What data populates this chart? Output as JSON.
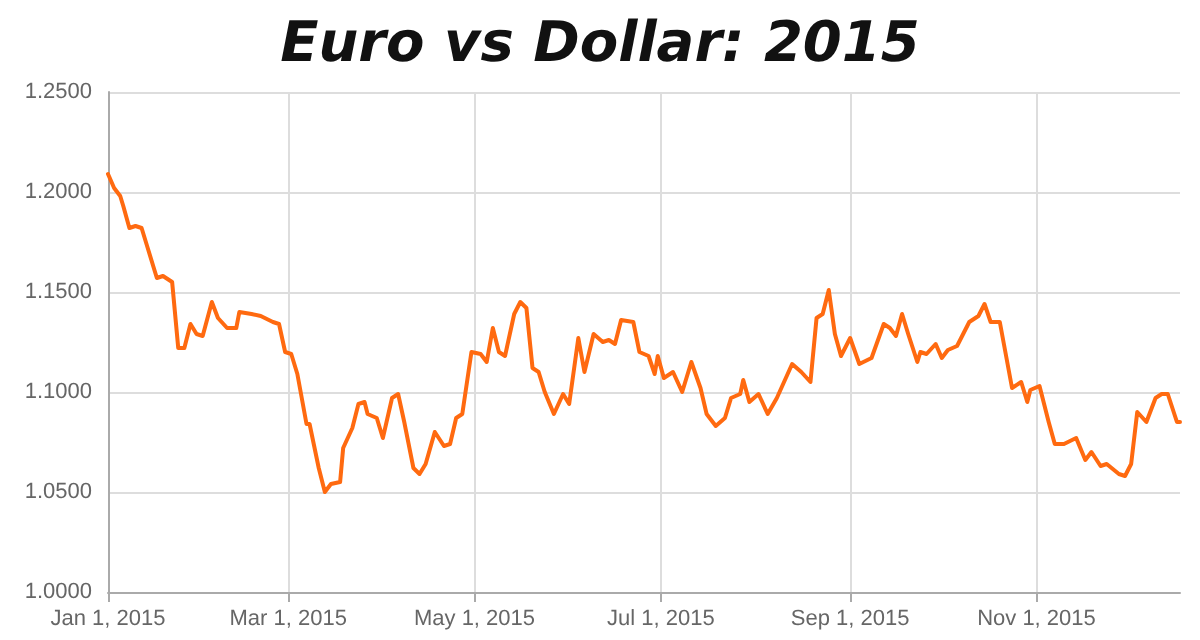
{
  "chart_data": {
    "type": "line",
    "title": "Euro vs Dollar: 2015",
    "x": [
      "2015-01-01",
      "2015-01-03",
      "2015-01-05",
      "2015-01-06",
      "2015-01-08",
      "2015-01-10",
      "2015-01-12",
      "2015-01-14",
      "2015-01-17",
      "2015-01-19",
      "2015-01-22",
      "2015-01-24",
      "2015-01-26",
      "2015-01-28",
      "2015-01-30",
      "2015-02-01",
      "2015-02-04",
      "2015-02-06",
      "2015-02-09",
      "2015-02-12",
      "2015-02-13",
      "2015-02-17",
      "2015-02-20",
      "2015-02-24",
      "2015-02-26",
      "2015-02-28",
      "2015-03-02",
      "2015-03-04",
      "2015-03-07",
      "2015-03-08",
      "2015-03-11",
      "2015-03-13",
      "2015-03-15",
      "2015-03-18",
      "2015-03-19",
      "2015-03-22",
      "2015-03-24",
      "2015-03-26",
      "2015-03-27",
      "2015-03-30",
      "2015-04-01",
      "2015-04-04",
      "2015-04-06",
      "2015-04-08",
      "2015-04-11",
      "2015-04-13",
      "2015-04-15",
      "2015-04-18",
      "2015-04-21",
      "2015-04-23",
      "2015-04-25",
      "2015-04-27",
      "2015-04-30",
      "2015-05-03",
      "2015-05-05",
      "2015-05-07",
      "2015-05-09",
      "2015-05-11",
      "2015-05-14",
      "2015-05-16",
      "2015-05-18",
      "2015-05-20",
      "2015-05-22",
      "2015-05-24",
      "2015-05-27",
      "2015-05-30",
      "2015-06-01",
      "2015-06-04",
      "2015-06-06",
      "2015-06-09",
      "2015-06-12",
      "2015-06-14",
      "2015-06-16",
      "2015-06-18",
      "2015-06-22",
      "2015-06-24",
      "2015-06-27",
      "2015-06-29",
      "2015-06-30",
      "2015-07-02",
      "2015-07-05",
      "2015-07-08",
      "2015-07-11",
      "2015-07-14",
      "2015-07-16",
      "2015-07-19",
      "2015-07-22",
      "2015-07-24",
      "2015-07-27",
      "2015-07-28",
      "2015-07-30",
      "2015-08-02",
      "2015-08-05",
      "2015-08-08",
      "2015-08-13",
      "2015-08-16",
      "2015-08-19",
      "2015-08-21",
      "2015-08-23",
      "2015-08-25",
      "2015-08-27",
      "2015-08-29",
      "2015-09-01",
      "2015-09-04",
      "2015-09-08",
      "2015-09-12",
      "2015-09-14",
      "2015-09-16",
      "2015-09-18",
      "2015-09-20",
      "2015-09-23",
      "2015-09-24",
      "2015-09-26",
      "2015-09-29",
      "2015-10-01",
      "2015-10-03",
      "2015-10-06",
      "2015-10-10",
      "2015-10-13",
      "2015-10-15",
      "2015-10-17",
      "2015-10-20",
      "2015-10-24",
      "2015-10-27",
      "2015-10-29",
      "2015-10-30",
      "2015-11-02",
      "2015-11-05",
      "2015-11-07",
      "2015-11-10",
      "2015-11-14",
      "2015-11-17",
      "2015-11-19",
      "2015-11-22",
      "2015-11-24",
      "2015-11-28",
      "2015-11-30",
      "2015-12-02",
      "2015-12-04",
      "2015-12-07",
      "2015-12-10",
      "2015-12-12",
      "2015-12-14",
      "2015-12-17",
      "2015-12-18"
    ],
    "series": [
      {
        "color": "#ff6a10",
        "values": [
          1.209,
          1.202,
          1.198,
          1.193,
          1.182,
          1.183,
          1.182,
          1.172,
          1.157,
          1.158,
          1.155,
          1.122,
          1.122,
          1.134,
          1.129,
          1.128,
          1.145,
          1.137,
          1.132,
          1.132,
          1.14,
          1.139,
          1.138,
          1.135,
          1.134,
          1.12,
          1.119,
          1.109,
          1.084,
          1.084,
          1.062,
          1.05,
          1.054,
          1.055,
          1.072,
          1.082,
          1.094,
          1.095,
          1.089,
          1.087,
          1.077,
          1.097,
          1.099,
          1.085,
          1.062,
          1.059,
          1.064,
          1.08,
          1.073,
          1.074,
          1.087,
          1.089,
          1.12,
          1.119,
          1.115,
          1.132,
          1.12,
          1.118,
          1.139,
          1.145,
          1.142,
          1.112,
          1.11,
          1.1,
          1.089,
          1.099,
          1.094,
          1.127,
          1.11,
          1.129,
          1.125,
          1.126,
          1.124,
          1.136,
          1.135,
          1.12,
          1.118,
          1.109,
          1.118,
          1.107,
          1.11,
          1.1,
          1.115,
          1.102,
          1.089,
          1.083,
          1.087,
          1.097,
          1.099,
          1.106,
          1.095,
          1.099,
          1.089,
          1.097,
          1.114,
          1.11,
          1.105,
          1.137,
          1.139,
          1.151,
          1.129,
          1.118,
          1.127,
          1.114,
          1.117,
          1.134,
          1.132,
          1.128,
          1.139,
          1.129,
          1.115,
          1.12,
          1.119,
          1.124,
          1.117,
          1.121,
          1.123,
          1.135,
          1.138,
          1.144,
          1.135,
          1.135,
          1.102,
          1.105,
          1.095,
          1.101,
          1.103,
          1.085,
          1.074,
          1.074,
          1.077,
          1.066,
          1.07,
          1.063,
          1.064,
          1.059,
          1.058,
          1.064,
          1.09,
          1.085,
          1.097,
          1.099,
          1.099,
          1.085,
          1.085
        ]
      }
    ],
    "xlim": [
      "2015-01-01",
      "2015-12-18"
    ],
    "xticks": [
      {
        "value": "2015-01-01",
        "label": "Jan 1, 2015"
      },
      {
        "value": "2015-03-01",
        "label": "Mar 1, 2015"
      },
      {
        "value": "2015-05-01",
        "label": "May 1, 2015"
      },
      {
        "value": "2015-07-01",
        "label": "Jul 1, 2015"
      },
      {
        "value": "2015-09-01",
        "label": "Sep 1, 2015"
      },
      {
        "value": "2015-11-01",
        "label": "Nov 1, 2015"
      }
    ],
    "ylim": [
      1.0,
      1.25
    ],
    "yticks": [
      {
        "value": 1.0,
        "label": "1.0000"
      },
      {
        "value": 1.05,
        "label": "1.0500"
      },
      {
        "value": 1.1,
        "label": "1.1000"
      },
      {
        "value": 1.15,
        "label": "1.1500"
      },
      {
        "value": 1.2,
        "label": "1.2000"
      },
      {
        "value": 1.25,
        "label": "1.2500"
      }
    ],
    "grid": true,
    "marker": "none",
    "line_style": "solid"
  }
}
